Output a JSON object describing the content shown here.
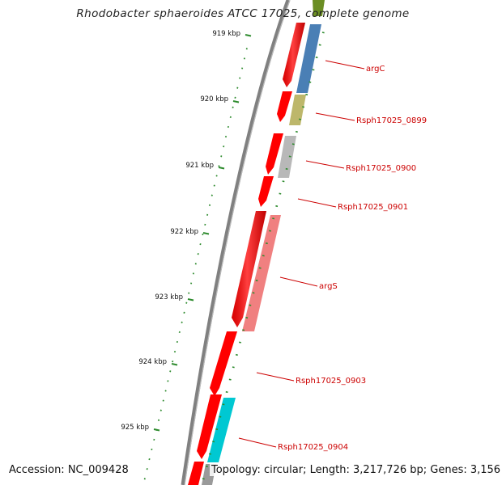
{
  "title": "Rhodobacter sphaeroides ATCC 17025, complete genome",
  "footer": {
    "accession": "Accession: NC_009428",
    "summary": "Topology: circular; Length: 3,217,726 bp; Genes: 3,156"
  },
  "ruler": {
    "labels": [
      "919 kbp",
      "920 kbp",
      "921 kbp",
      "922 kbp",
      "923 kbp",
      "924 kbp",
      "925 kbp"
    ]
  },
  "genes": [
    {
      "name": "argC",
      "color": "#4a7fb5"
    },
    {
      "name": "Rsph17025_0899",
      "color": "#bdb76b"
    },
    {
      "name": "Rsph17025_0900",
      "color": "#b8b8b8"
    },
    {
      "name": "Rsph17025_0901",
      "color": "#ff0000"
    },
    {
      "name": "argS",
      "color": "#f08080"
    },
    {
      "name": "Rsph17025_0903",
      "color": "#ff0000"
    },
    {
      "name": "Rsph17025_0904",
      "color": "#00c8d2"
    }
  ],
  "colors": {
    "backbone": "#808080",
    "cds": "#ff0000",
    "tick": "#2e8b2e",
    "label": "#cc0000"
  }
}
